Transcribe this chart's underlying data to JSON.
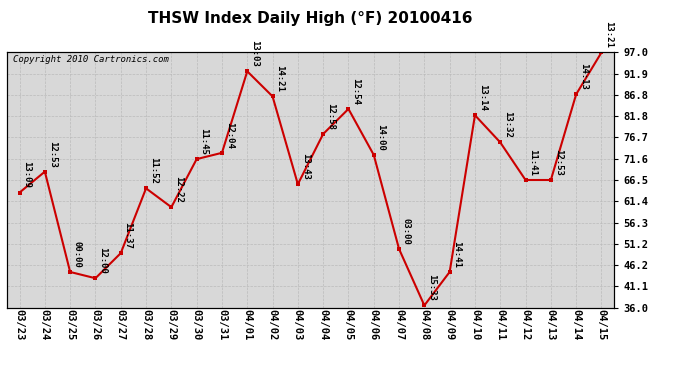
{
  "title": "THSW Index Daily High (°F) 20100416",
  "copyright": "Copyright 2010 Cartronics.com",
  "dates": [
    "03/23",
    "03/24",
    "03/25",
    "03/26",
    "03/27",
    "03/28",
    "03/29",
    "03/30",
    "03/31",
    "04/01",
    "04/02",
    "04/03",
    "04/04",
    "04/05",
    "04/06",
    "04/07",
    "04/08",
    "04/09",
    "04/10",
    "04/11",
    "04/12",
    "04/13",
    "04/14",
    "04/15"
  ],
  "values": [
    63.5,
    68.5,
    44.5,
    43.0,
    49.0,
    64.5,
    60.0,
    71.5,
    73.0,
    92.5,
    86.5,
    65.5,
    77.5,
    83.5,
    72.5,
    50.0,
    36.5,
    44.5,
    82.0,
    75.5,
    66.5,
    66.5,
    87.0,
    97.0
  ],
  "labels": [
    "13:09",
    "12:53",
    "00:00",
    "12:00",
    "11:37",
    "11:52",
    "12:22",
    "11:45",
    "12:04",
    "13:03",
    "14:21",
    "13:43",
    "12:58",
    "12:54",
    "14:00",
    "03:00",
    "15:33",
    "14:41",
    "13:14",
    "13:32",
    "11:41",
    "12:53",
    "14:13",
    "13:21"
  ],
  "ylim": [
    36.0,
    97.0
  ],
  "yticks": [
    36.0,
    41.1,
    46.2,
    51.2,
    56.3,
    61.4,
    66.5,
    71.6,
    76.7,
    81.8,
    86.8,
    91.9,
    97.0
  ],
  "line_color": "#cc0000",
  "marker_color": "#cc0000",
  "grid_color": "#bbbbbb",
  "bg_color": "#d8d8d8",
  "title_fontsize": 11,
  "label_fontsize": 6.5,
  "tick_fontsize": 7.5,
  "copyright_fontsize": 6.5
}
